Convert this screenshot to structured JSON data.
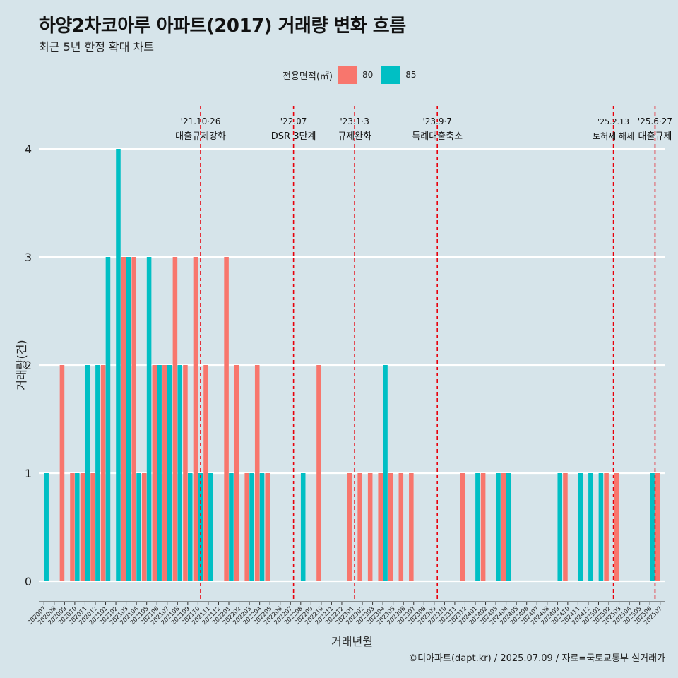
{
  "title": "하양2차코아루 아파트(2017) 거래량 변화 흐름",
  "subtitle": "최근 5년 한정 확대 차트",
  "caption": "©디아파트(dapt.kr) / 2025.07.09 / 자료=국토교통부 실거래가",
  "colors": {
    "s80": "#F8766D",
    "s85": "#00BFC4",
    "event": "#e8000b",
    "grid": "#ffffff"
  },
  "chart_data": {
    "type": "bar",
    "title": "하양2차코아루 아파트(2017) 거래량 변화 흐름",
    "xlabel": "거래년월",
    "ylabel": "거래량(건)",
    "ylim": [
      0,
      4
    ],
    "yticks": [
      0,
      1,
      2,
      3,
      4
    ],
    "legend_title": "전용면적(㎡)",
    "legend_position": "top",
    "categories": [
      "202007",
      "202008",
      "202009",
      "202010",
      "202011",
      "202012",
      "202101",
      "202102",
      "202103",
      "202104",
      "202105",
      "202106",
      "202107",
      "202108",
      "202109",
      "202110",
      "202111",
      "202112",
      "202201",
      "202202",
      "202203",
      "202204",
      "202205",
      "202206",
      "202207",
      "202208",
      "202209",
      "202210",
      "202211",
      "202212",
      "202301",
      "202302",
      "202303",
      "202304",
      "202305",
      "202306",
      "202307",
      "202308",
      "202309",
      "202310",
      "202311",
      "202312",
      "202401",
      "202402",
      "202403",
      "202404",
      "202405",
      "202406",
      "202407",
      "202408",
      "202409",
      "202410",
      "202411",
      "202412",
      "202501",
      "202502",
      "202503",
      "202504",
      "202505",
      "202506",
      "202507"
    ],
    "series": [
      {
        "name": "80",
        "values": [
          0,
          0,
          2,
          1,
          1,
          1,
          2,
          0,
          3,
          3,
          1,
          2,
          2,
          3,
          2,
          3,
          2,
          0,
          3,
          2,
          1,
          2,
          1,
          0,
          0,
          0,
          0,
          2,
          0,
          0,
          1,
          1,
          1,
          1,
          1,
          1,
          1,
          0,
          0,
          0,
          0,
          1,
          0,
          1,
          0,
          1,
          0,
          0,
          0,
          0,
          0,
          1,
          0,
          0,
          0,
          1,
          1,
          0,
          0,
          0,
          1
        ]
      },
      {
        "name": "85",
        "values": [
          1,
          0,
          0,
          1,
          2,
          2,
          3,
          4,
          3,
          1,
          3,
          2,
          2,
          2,
          1,
          1,
          1,
          0,
          1,
          0,
          1,
          1,
          0,
          0,
          0,
          1,
          0,
          0,
          0,
          0,
          0,
          0,
          0,
          2,
          0,
          0,
          0,
          0,
          0,
          0,
          0,
          0,
          1,
          0,
          1,
          1,
          0,
          0,
          0,
          0,
          1,
          0,
          1,
          1,
          1,
          0,
          0,
          0,
          0,
          1,
          0
        ]
      }
    ],
    "events": [
      {
        "index": 15.25,
        "date": "'21.10·26",
        "label": "대출규제강화"
      },
      {
        "index": 24.3,
        "date": "'22.07",
        "label": "DSR 3단계"
      },
      {
        "index": 30.25,
        "date": "'23.1·3",
        "label": "규제완화"
      },
      {
        "index": 38.3,
        "date": "'23.9·7",
        "label": "특례대출축소"
      },
      {
        "index": 55.45,
        "date": "'25.2.13",
        "label": "토허제 해제"
      },
      {
        "index": 59.5,
        "date": "'25.6·27",
        "label": "대출규제"
      }
    ]
  }
}
